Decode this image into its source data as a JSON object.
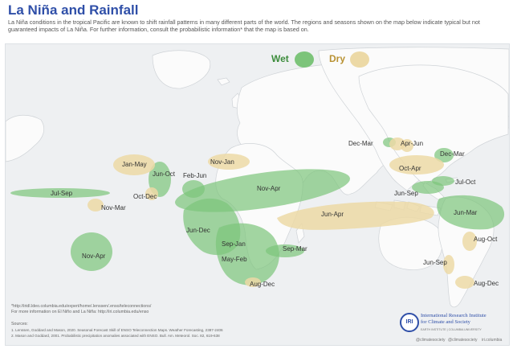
{
  "title": "La Niña and Rainfall",
  "intro": "La Niña conditions in the tropical Pacific are known to shift rainfall patterns in many different parts of the world. The regions and seasons shown on the map below indicate typical but not guaranteed impacts of La Niña. For further information, consult the probabilistic information* that the map is based on.",
  "legend": {
    "wet": "Wet",
    "dry": "Dry"
  },
  "colors": {
    "wet": "#7cc47a",
    "dry": "#ecd9a6",
    "land": "#fbfbfb",
    "ocean": "#eef0f2",
    "title": "#2f4fa8"
  },
  "regions": [
    {
      "label": "Jan-May",
      "type": "dry"
    },
    {
      "label": "Jun-Oct",
      "type": "wet"
    },
    {
      "label": "Nov-Jan",
      "type": "dry"
    },
    {
      "label": "Feb-Jun",
      "type": "wet"
    },
    {
      "label": "Oct-Dec",
      "type": "dry"
    },
    {
      "label": "Jul-Sep",
      "type": "wet"
    },
    {
      "label": "Nov-Mar",
      "type": "dry"
    },
    {
      "label": "Nov-Apr",
      "type": "wet"
    },
    {
      "label": "Jun-Dec",
      "type": "wet"
    },
    {
      "label": "Sep-Jan",
      "type": "wet"
    },
    {
      "label": "May-Feb",
      "type": "wet"
    },
    {
      "label": "Sep-Mar",
      "type": "wet"
    },
    {
      "label": "Aug-Dec",
      "type": "dry"
    },
    {
      "label": "Nov-Apr",
      "type": "wet"
    },
    {
      "label": "Jun-Apr",
      "type": "dry"
    },
    {
      "label": "Dec-Mar",
      "type": "dry"
    },
    {
      "label": "Apr-Jun",
      "type": "dry"
    },
    {
      "label": "Dec-Mar",
      "type": "wet"
    },
    {
      "label": "Oct-Apr",
      "type": "dry"
    },
    {
      "label": "Jul-Oct",
      "type": "wet"
    },
    {
      "label": "Jun-Sep",
      "type": "wet"
    },
    {
      "label": "Jun-Mar",
      "type": "wet"
    },
    {
      "label": "Aug-Oct",
      "type": "dry"
    },
    {
      "label": "Jun-Sep",
      "type": "dry"
    },
    {
      "label": "Aug-Dec",
      "type": "dry"
    }
  ],
  "footer": {
    "link1": "*http://iridl.ldeo.columbia.edu/expert/home/.lenssen/.enso/teleconnections/",
    "link2": "For more information on El Niño and La Niña: http://iri.columbia.edu/enso",
    "sources_title": "Sources:",
    "source1": "1. Lenssen, Goddard and Mason, 2020. Seasonal Forecast Skill of ENSO Teleconnection Maps. Weather Forecasting, 2387-2406",
    "source2": "2. Mason and Goddard, 2001. Probabilistic precipitation anomalies associated with ENSO. Bull. Am. Meteorol. Soc. 82, 619-638"
  },
  "logo": {
    "abbr": "IRI",
    "name_line1": "International Research Institute",
    "name_line2": "for Climate and Society",
    "sub": "EARTH INSTITUTE | COLUMBIA UNIVERSITY",
    "social1": "@climatesociety",
    "social2": "@climatesociety",
    "social3": "iri.columbia"
  }
}
